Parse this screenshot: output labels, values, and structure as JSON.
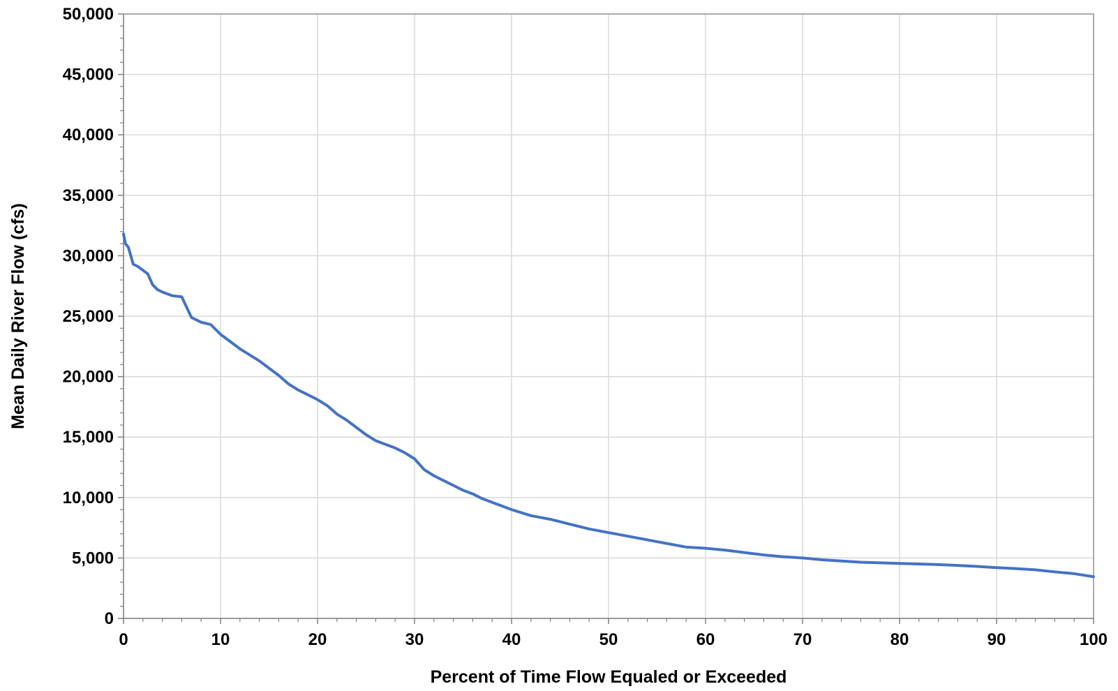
{
  "chart_data": {
    "type": "line",
    "title": "",
    "xlabel": "Percent of Time Flow Equaled or Exceeded",
    "ylabel": "Mean Daily River Flow (cfs)",
    "xlim": [
      0,
      100
    ],
    "ylim": [
      0,
      50000
    ],
    "x_ticks": [
      0,
      10,
      20,
      30,
      40,
      50,
      60,
      70,
      80,
      90,
      100
    ],
    "x_tick_labels": [
      "0",
      "10",
      "20",
      "30",
      "40",
      "50",
      "60",
      "70",
      "80",
      "90",
      "100"
    ],
    "y_ticks": [
      0,
      5000,
      10000,
      15000,
      20000,
      25000,
      30000,
      35000,
      40000,
      45000,
      50000
    ],
    "y_tick_labels": [
      "0",
      "5,000",
      "10,000",
      "15,000",
      "20,000",
      "25,000",
      "30,000",
      "35,000",
      "40,000",
      "45,000",
      "50,000"
    ],
    "grid": true,
    "legend": "none",
    "series": [
      {
        "color": "#4472C4",
        "x": [
          0,
          0.2,
          0.5,
          1,
          1.5,
          2,
          2.5,
          3,
          3.5,
          4,
          5,
          6,
          7,
          8,
          9,
          10,
          11,
          12,
          13,
          14,
          15,
          16,
          17,
          18,
          19,
          20,
          21,
          22,
          23,
          24,
          25,
          26,
          27,
          28,
          29,
          30,
          31,
          32,
          33,
          34,
          35,
          36,
          37,
          38,
          39,
          40,
          42,
          44,
          46,
          48,
          50,
          52,
          54,
          56,
          58,
          60,
          62,
          64,
          66,
          68,
          70,
          72,
          74,
          76,
          78,
          80,
          82,
          84,
          86,
          88,
          90,
          92,
          94,
          96,
          98,
          100
        ],
        "y": [
          31800,
          31000,
          30700,
          29300,
          29100,
          28800,
          28500,
          27600,
          27200,
          27000,
          26700,
          26600,
          24900,
          24500,
          24300,
          23500,
          22900,
          22300,
          21800,
          21300,
          20700,
          20100,
          19400,
          18900,
          18500,
          18100,
          17600,
          16900,
          16400,
          15800,
          15200,
          14700,
          14400,
          14100,
          13700,
          13200,
          12300,
          11800,
          11400,
          11000,
          10600,
          10300,
          9900,
          9600,
          9300,
          9000,
          8500,
          8200,
          7800,
          7400,
          7100,
          6800,
          6500,
          6200,
          5900,
          5800,
          5650,
          5450,
          5250,
          5100,
          5000,
          4850,
          4750,
          4650,
          4600,
          4550,
          4500,
          4450,
          4380,
          4300,
          4200,
          4120,
          4020,
          3850,
          3700,
          3450
        ]
      }
    ]
  }
}
